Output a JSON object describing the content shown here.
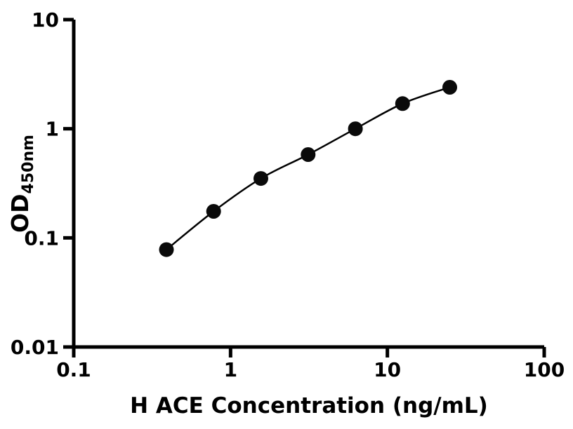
{
  "chart_data": {
    "type": "scatter",
    "title": "",
    "xlabel": "H ACE Concentration (ng/mL)",
    "ylabel": "OD450nm",
    "ylabel_main": "OD",
    "ylabel_sub": "450nm",
    "xscale": "log",
    "yscale": "log",
    "xlim": [
      0.1,
      100
    ],
    "ylim": [
      0.01,
      10
    ],
    "x_ticks": [
      0.1,
      1,
      10,
      100
    ],
    "x_tick_labels": [
      "0.1",
      "1",
      "10",
      "100"
    ],
    "y_ticks": [
      0.01,
      0.1,
      1,
      10
    ],
    "y_tick_labels": [
      "0.01",
      "0.1",
      "1",
      "10"
    ],
    "grid": false,
    "legend": null,
    "colors": {
      "axis": "#000000",
      "marker": "#0a0a0a",
      "line": "#000000",
      "background": "#ffffff"
    },
    "series": [
      {
        "x": [
          0.39,
          0.78,
          1.56,
          3.125,
          6.25,
          12.5,
          25
        ],
        "y": [
          0.078,
          0.175,
          0.35,
          0.58,
          1.0,
          1.7,
          2.4
        ],
        "marker": "circle"
      }
    ]
  }
}
